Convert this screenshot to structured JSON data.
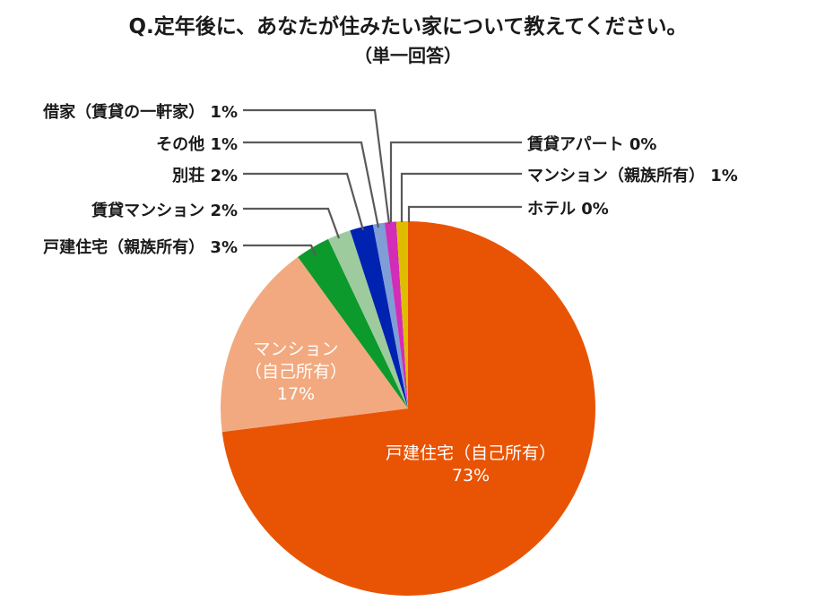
{
  "chart_data": {
    "type": "pie",
    "title": "Q.定年後に、あなたが住みたい家について教えてください。",
    "subtitle": "（単一回答）",
    "start_angle_deg": 0,
    "direction": "clockwise",
    "slices": [
      {
        "label": "戸建住宅（自己所有）",
        "value": 73,
        "display": "73%",
        "color": "#E85404"
      },
      {
        "label": "マンション（自己所有）",
        "value": 17,
        "display": "17%",
        "color": "#F2A97F"
      },
      {
        "label": "戸建住宅（親族所有）",
        "value": 3,
        "display": "3%",
        "color": "#0C9A2C"
      },
      {
        "label": "賃貸マンション",
        "value": 2,
        "display": "2%",
        "color": "#9DCB9E"
      },
      {
        "label": "別荘",
        "value": 2,
        "display": "2%",
        "color": "#0022B0"
      },
      {
        "label": "その他",
        "value": 1,
        "display": "1%",
        "color": "#7F9DD6"
      },
      {
        "label": "借家（賃貸の一軒家）",
        "value": 1,
        "display": "1%",
        "color": "#D22DB6"
      },
      {
        "label": "マンション（親族所有）",
        "value": 1,
        "display": "1%",
        "color": "#E0BC00"
      },
      {
        "label": "賃貸アパート",
        "value": 0,
        "display": "0%",
        "color": "#999999"
      },
      {
        "label": "ホテル",
        "value": 0,
        "display": "0%",
        "color": "#999999"
      }
    ]
  },
  "header": {
    "title": "Q.定年後に、あなたが住みたい家について教えてください。",
    "subtitle": "（単一回答）"
  },
  "inside_labels": {
    "main": {
      "line1": "戸建住宅（自己所有）",
      "line2": "73%"
    },
    "second": {
      "line1": "マンション",
      "line2": "（自己所有）",
      "line3": "17%"
    }
  },
  "callouts": {
    "left": [
      {
        "text": "借家（賃貸の一軒家） 1%"
      },
      {
        "text": "その他 1%"
      },
      {
        "text": "別荘 2%"
      },
      {
        "text": "賃貸マンション 2%"
      },
      {
        "text": "戸建住宅（親族所有） 3%"
      }
    ],
    "right": [
      {
        "text": "賃貸アパート 0%"
      },
      {
        "text": "マンション（親族所有） 1%"
      },
      {
        "text": "ホテル 0%"
      }
    ]
  }
}
